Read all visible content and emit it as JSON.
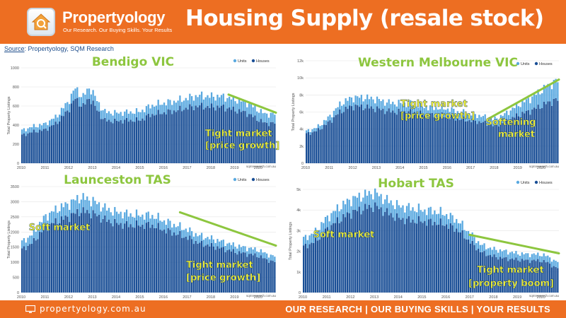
{
  "header": {
    "brand": "Propertyology",
    "tagline": "Our Research. Our Buying Skills. Your Results",
    "title": "Housing Supply (resale stock)"
  },
  "source": {
    "label": "Source",
    "text": ": Propertyology, SQM Research"
  },
  "footer": {
    "site": "propertyology.com.au",
    "motto": "OUR RESEARCH | OUR BUYING SKILLS | YOUR RESULTS"
  },
  "colors": {
    "orange": "#ed6e22",
    "units": "#5aa9e0",
    "houses": "#1a4f96",
    "trend": "#8dc63f",
    "note": "#f2f233"
  },
  "chart_data": [
    {
      "type": "bar",
      "stacked": true,
      "title": "Bendigo VIC",
      "ylabel": "Total Property Listings",
      "legend": [
        "Units",
        "Houses"
      ],
      "legend_position": "top-right",
      "credit": "sqmresearch.com.au",
      "ylim": [
        0,
        1000
      ],
      "yticks": [
        "0",
        "200",
        "400",
        "600",
        "800",
        "1000"
      ],
      "xticks": [
        "2010",
        "2011",
        "2012",
        "2013",
        "2014",
        "2015",
        "2016",
        "2017",
        "2018",
        "2019",
        "2020"
      ],
      "x_start": 2010.0,
      "x_end": 2020.75,
      "series": [
        {
          "name": "Units",
          "x": [
            2010,
            2010.5,
            2011,
            2011.5,
            2012,
            2012.3,
            2012.6,
            2012.9,
            2013.2,
            2013.5,
            2014,
            2014.5,
            2015,
            2015.5,
            2016,
            2016.5,
            2017,
            2017.5,
            2018,
            2018.5,
            2019,
            2019.5,
            2020,
            2020.3,
            2020.6
          ],
          "y": [
            50,
            55,
            60,
            70,
            90,
            110,
            100,
            110,
            100,
            90,
            85,
            85,
            90,
            95,
            100,
            100,
            100,
            110,
            110,
            110,
            110,
            110,
            100,
            95,
            95
          ]
        },
        {
          "name": "Houses",
          "x": [
            2010,
            2010.5,
            2011,
            2011.5,
            2012,
            2012.3,
            2012.6,
            2012.9,
            2013.2,
            2013.5,
            2014,
            2014.5,
            2015,
            2015.5,
            2016,
            2016.5,
            2017,
            2017.5,
            2018,
            2018.5,
            2019,
            2019.5,
            2020,
            2020.3,
            2020.6
          ],
          "y": [
            290,
            330,
            350,
            420,
            560,
            680,
            590,
            690,
            560,
            450,
            440,
            450,
            450,
            510,
            530,
            550,
            580,
            600,
            590,
            590,
            560,
            530,
            460,
            420,
            420
          ]
        }
      ],
      "trend": {
        "x": [
          2018.75,
          2020.75
        ],
        "y": [
          720,
          530
        ]
      },
      "note": [
        "Tight market",
        "[price growth]"
      ]
    },
    {
      "type": "bar",
      "stacked": true,
      "title": "Western Melbourne VIC",
      "ylabel": "Total Property Listings",
      "legend": [
        "Units",
        "Houses"
      ],
      "legend_position": "top-right",
      "credit": "sqmresearch.com.au",
      "ylim": [
        0,
        12000
      ],
      "yticks": [
        "0",
        "2k",
        "4k",
        "6k",
        "8k",
        "10k",
        "12k"
      ],
      "xticks": [
        "2010",
        "2011",
        "2012",
        "2013",
        "2014",
        "2015",
        "2016",
        "2017",
        "2018",
        "2019",
        "2020"
      ],
      "x_start": 2010.0,
      "x_end": 2020.75,
      "series": [
        {
          "name": "Units",
          "x": [
            2010,
            2010.5,
            2011,
            2011.5,
            2012,
            2012.5,
            2013,
            2013.5,
            2014,
            2014.5,
            2015,
            2015.5,
            2016,
            2016.5,
            2017,
            2017.5,
            2018,
            2018.5,
            2019,
            2019.5,
            2020,
            2020.3,
            2020.6
          ],
          "y": [
            300,
            400,
            600,
            900,
            1000,
            1100,
            1100,
            1000,
            1000,
            1000,
            900,
            900,
            900,
            800,
            800,
            700,
            700,
            900,
            1200,
            1400,
            1800,
            2000,
            2200
          ]
        },
        {
          "name": "Houses",
          "x": [
            2010,
            2010.5,
            2011,
            2011.5,
            2012,
            2012.5,
            2013,
            2013.5,
            2014,
            2014.5,
            2015,
            2015.5,
            2016,
            2016.5,
            2017,
            2017.5,
            2018,
            2018.5,
            2019,
            2019.5,
            2020,
            2020.3,
            2020.6
          ],
          "y": [
            3400,
            3800,
            4800,
            6100,
            6700,
            6600,
            6400,
            6100,
            6000,
            6000,
            5700,
            5600,
            5500,
            5200,
            5000,
            4800,
            4400,
            4900,
            5600,
            6100,
            6700,
            7100,
            7400
          ]
        }
      ],
      "trend": {
        "x": [
          2017.75,
          2020.75
        ],
        "y": [
          5200,
          9800
        ]
      },
      "note": [
        "Tight market",
        "[price growth]"
      ],
      "note2": [
        "Softening",
        "market"
      ]
    },
    {
      "type": "bar",
      "stacked": true,
      "title": "Launceston TAS",
      "ylabel": "Total Property Listings",
      "legend": [
        "Units",
        "Houses"
      ],
      "legend_position": "top-right",
      "credit": "sqmresearch.com.au",
      "ylim": [
        0,
        3500
      ],
      "yticks": [
        "0",
        "500",
        "1000",
        "1500",
        "2000",
        "2500",
        "3000",
        "3500"
      ],
      "xticks": [
        "2010",
        "2011",
        "2012",
        "2013",
        "2014",
        "2015",
        "2016",
        "2017",
        "2018",
        "2019",
        "2020"
      ],
      "x_start": 2010.0,
      "x_end": 2020.75,
      "series": [
        {
          "name": "Units",
          "x": [
            2010,
            2010.5,
            2011,
            2011.5,
            2012,
            2012.5,
            2013,
            2013.5,
            2014,
            2014.5,
            2015,
            2015.5,
            2016,
            2016.5,
            2017,
            2017.5,
            2018,
            2018.5,
            2019,
            2019.5,
            2020,
            2020.3,
            2020.6
          ],
          "y": [
            250,
            280,
            350,
            400,
            430,
            450,
            420,
            380,
            370,
            360,
            330,
            320,
            300,
            280,
            260,
            250,
            240,
            230,
            210,
            200,
            190,
            190,
            180
          ]
        },
        {
          "name": "Houses",
          "x": [
            2010,
            2010.5,
            2011,
            2011.5,
            2012,
            2012.5,
            2013,
            2013.5,
            2014,
            2014.5,
            2015,
            2015.5,
            2016,
            2016.5,
            2017,
            2017.5,
            2018,
            2018.5,
            2019,
            2019.5,
            2020,
            2020.3,
            2020.6
          ],
          "y": [
            1400,
            1650,
            2150,
            2350,
            2500,
            2700,
            2620,
            2420,
            2280,
            2230,
            2220,
            2230,
            2080,
            1950,
            1820,
            1630,
            1550,
            1450,
            1350,
            1280,
            1220,
            1110,
            1020
          ]
        }
      ],
      "trend": {
        "x": [
          2016.7,
          2020.75
        ],
        "y": [
          2650,
          1550
        ]
      },
      "note": [
        "Tight market",
        "[price growth]"
      ],
      "note2": [
        "Soft market"
      ]
    },
    {
      "type": "bar",
      "stacked": true,
      "title": "Hobart TAS",
      "ylabel": "Total Property Listings",
      "legend": [
        "Units",
        "Houses"
      ],
      "legend_position": "top-right",
      "credit": "sqmresearch.com.au",
      "ylim": [
        0,
        5000
      ],
      "yticks": [
        "0",
        "1k",
        "2k",
        "3k",
        "4k",
        "5k"
      ],
      "xticks": [
        "2010",
        "2011",
        "2012",
        "2013",
        "2014",
        "2015",
        "2016",
        "2017",
        "2018",
        "2019",
        "2020"
      ],
      "x_start": 2010.0,
      "x_end": 2020.75,
      "series": [
        {
          "name": "Units",
          "x": [
            2010,
            2010.5,
            2011,
            2011.5,
            2012,
            2012.5,
            2013,
            2013.5,
            2014,
            2014.5,
            2015,
            2015.5,
            2016,
            2016.5,
            2017,
            2017.5,
            2018,
            2018.5,
            2019,
            2019.5,
            2020,
            2020.3,
            2020.6
          ],
          "y": [
            400,
            450,
            550,
            600,
            650,
            650,
            650,
            600,
            600,
            600,
            550,
            550,
            500,
            450,
            400,
            350,
            350,
            350,
            300,
            300,
            300,
            300,
            300
          ]
        },
        {
          "name": "Houses",
          "x": [
            2010,
            2010.5,
            2011,
            2011.5,
            2012,
            2012.5,
            2013,
            2013.5,
            2014,
            2014.5,
            2015,
            2015.5,
            2016,
            2016.5,
            2017,
            2017.5,
            2018,
            2018.5,
            2019,
            2019.5,
            2020,
            2020.3,
            2020.6
          ],
          "y": [
            2200,
            2450,
            3050,
            3500,
            3850,
            4050,
            4200,
            3900,
            3600,
            3500,
            3450,
            3400,
            3300,
            3050,
            2500,
            1950,
            1750,
            1650,
            1600,
            1550,
            1550,
            1450,
            1200
          ]
        }
      ],
      "trend": {
        "x": [
          2017.0,
          2020.75
        ],
        "y": [
          2800,
          1900
        ]
      },
      "note": [
        "Tight market",
        "[property boom]"
      ],
      "note2": [
        "Soft market"
      ]
    }
  ]
}
